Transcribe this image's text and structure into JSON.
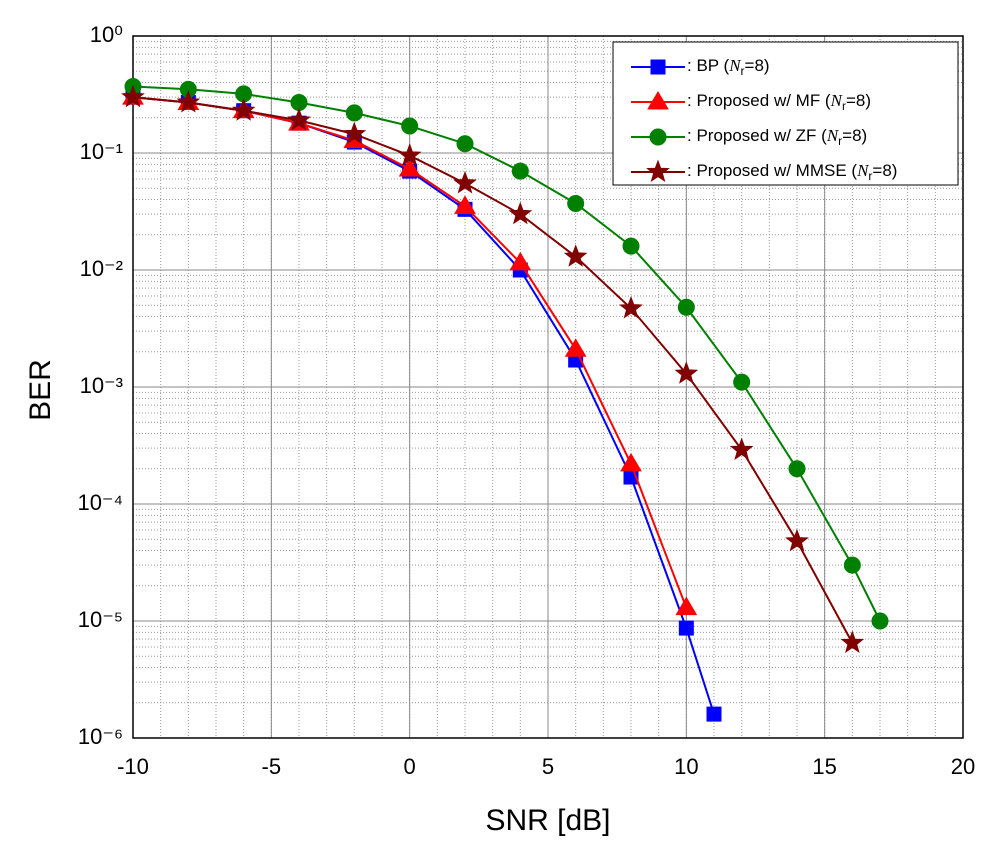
{
  "chart_data": {
    "type": "line",
    "xlabel": "SNR [dB]",
    "ylabel": "BER",
    "xlim": [
      -10,
      20
    ],
    "xticks": [
      -10,
      -5,
      0,
      5,
      10,
      15,
      20
    ],
    "ylim": [
      1e-06,
      1
    ],
    "log_y": true,
    "grid": true,
    "legend": "upper right",
    "yticks": [
      {
        "value": 1,
        "label": "10⁰"
      },
      {
        "value": 0.1,
        "label": "10⁻¹"
      },
      {
        "value": 0.01,
        "label": "10⁻²"
      },
      {
        "value": 0.001,
        "label": "10⁻³"
      },
      {
        "value": 0.0001,
        "label": "10⁻⁴"
      },
      {
        "value": 1e-05,
        "label": "10⁻⁵"
      },
      {
        "value": 1e-06,
        "label": "10⁻⁶"
      }
    ],
    "series": [
      {
        "name": ": BP (Nr=8)",
        "color": "#0000ff",
        "marker": "square",
        "x": [
          -10,
          -8,
          -6,
          -4,
          -2,
          0,
          2,
          4,
          6,
          8,
          10,
          11
        ],
        "values": [
          0.3,
          0.27,
          0.23,
          0.18,
          0.124,
          0.07,
          0.033,
          0.01,
          0.0017,
          0.00017,
          8.7e-06,
          1.6e-06
        ]
      },
      {
        "name": ": Proposed w/ MF (Nr=8)",
        "color": "#ff0000",
        "marker": "triangle",
        "x": [
          -10,
          -8,
          -6,
          -4,
          -2,
          0,
          2,
          4,
          6,
          8,
          10
        ],
        "values": [
          0.3,
          0.27,
          0.23,
          0.18,
          0.128,
          0.073,
          0.035,
          0.0115,
          0.0021,
          0.00022,
          1.3e-05
        ]
      },
      {
        "name": ": Proposed w/ ZF (Nr=8)",
        "color": "#008000",
        "marker": "circle",
        "x": [
          -10,
          -8,
          -6,
          -4,
          -2,
          0,
          2,
          4,
          6,
          8,
          10,
          12,
          14,
          16,
          17
        ],
        "values": [
          0.37,
          0.35,
          0.32,
          0.27,
          0.22,
          0.17,
          0.12,
          0.07,
          0.037,
          0.016,
          0.0048,
          0.0011,
          0.0002,
          3e-05,
          1e-05
        ]
      },
      {
        "name": ": Proposed w/ MMSE (Nr=8)",
        "color": "#800000",
        "marker": "star",
        "x": [
          -10,
          -8,
          -6,
          -4,
          -2,
          0,
          2,
          4,
          6,
          8,
          10,
          12,
          14,
          16
        ],
        "values": [
          0.3,
          0.27,
          0.23,
          0.19,
          0.145,
          0.095,
          0.055,
          0.03,
          0.013,
          0.0047,
          0.0013,
          0.00029,
          4.8e-05,
          6.5e-06
        ]
      }
    ]
  }
}
